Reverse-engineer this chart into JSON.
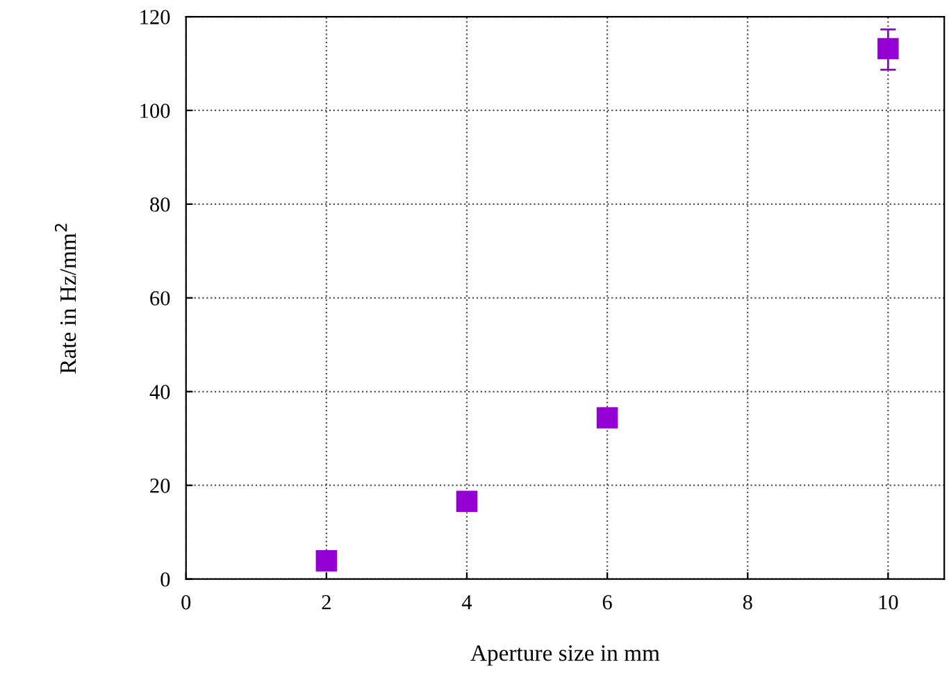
{
  "chart_data": {
    "type": "scatter",
    "xlabel": "Aperture size in mm",
    "ylabel": "Rate in Hz/mm$^{2}$",
    "x": [
      2,
      4,
      6,
      10
    ],
    "values": [
      3.9,
      16.6,
      34.4,
      113.2
    ],
    "errors": [
      null,
      null,
      null,
      [
        108.7,
        117.3
      ]
    ],
    "color": "#9400d3",
    "marker": "square",
    "xlim": [
      0,
      10.8
    ],
    "ylim": [
      0,
      120
    ],
    "xticks": [
      0,
      2,
      4,
      6,
      8,
      10
    ],
    "yticks": [
      0,
      20,
      40,
      60,
      80,
      100,
      120
    ],
    "grid": true
  }
}
